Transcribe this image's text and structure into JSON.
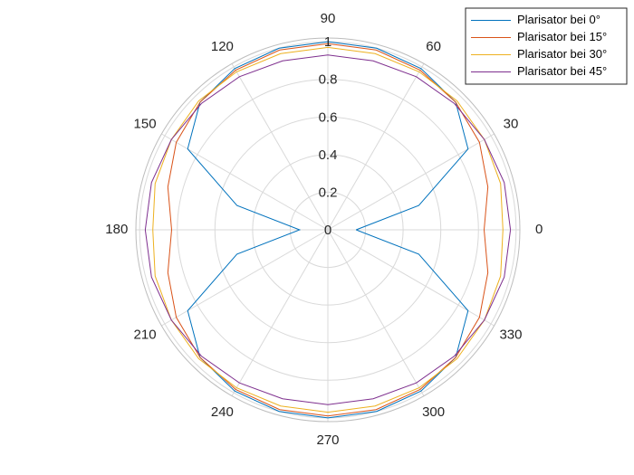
{
  "chart_data": {
    "type": "polar-line",
    "theta_ticks_deg": [
      0,
      30,
      60,
      90,
      120,
      150,
      180,
      210,
      240,
      270,
      300,
      330
    ],
    "theta_tick_labels": [
      "0",
      "30",
      "60",
      "90",
      "120",
      "150",
      "180",
      "210",
      "240",
      "270",
      "300",
      "330"
    ],
    "r_ticks": [
      0,
      0.2,
      0.4,
      0.6,
      0.8,
      1
    ],
    "r_tick_labels": [
      "0",
      "0.2",
      "0.4",
      "0.6",
      "0.8",
      "1"
    ],
    "rlim": [
      0,
      1.02
    ],
    "grid": true,
    "legend_position": "top-right",
    "theta_deg": [
      0,
      15,
      30,
      45,
      60,
      75,
      90,
      105,
      120,
      135,
      150,
      165,
      180,
      195,
      210,
      225,
      240,
      255,
      270,
      285,
      300,
      315,
      330,
      345,
      360
    ],
    "series": [
      {
        "name": "Plarisator bei 0°",
        "color": "#0072BD",
        "values": [
          0.15,
          0.5,
          0.86,
          0.96,
          0.99,
          1.0,
          1.0,
          1.0,
          0.99,
          0.96,
          0.86,
          0.5,
          0.15,
          0.5,
          0.86,
          0.96,
          0.99,
          1.0,
          1.0,
          1.0,
          0.99,
          0.96,
          0.86,
          0.5,
          0.15
        ]
      },
      {
        "name": "Plarisator bei 15°",
        "color": "#D95319",
        "values": [
          0.83,
          0.88,
          0.93,
          0.96,
          0.98,
          0.99,
          0.99,
          0.99,
          0.98,
          0.96,
          0.93,
          0.88,
          0.83,
          0.88,
          0.93,
          0.96,
          0.98,
          0.99,
          0.99,
          0.99,
          0.98,
          0.96,
          0.93,
          0.88,
          0.83
        ]
      },
      {
        "name": "Plarisator bei 30°",
        "color": "#EDB120",
        "values": [
          0.93,
          0.95,
          0.96,
          0.97,
          0.97,
          0.97,
          0.97,
          0.97,
          0.97,
          0.97,
          0.96,
          0.95,
          0.93,
          0.95,
          0.96,
          0.97,
          0.97,
          0.97,
          0.97,
          0.97,
          0.97,
          0.97,
          0.96,
          0.95,
          0.93
        ]
      },
      {
        "name": "Plarisator bei 45°",
        "color": "#7E2F8E",
        "values": [
          0.97,
          0.97,
          0.96,
          0.95,
          0.94,
          0.93,
          0.93,
          0.93,
          0.94,
          0.95,
          0.96,
          0.97,
          0.97,
          0.97,
          0.96,
          0.95,
          0.94,
          0.93,
          0.93,
          0.93,
          0.94,
          0.95,
          0.96,
          0.97,
          0.97
        ]
      }
    ]
  }
}
